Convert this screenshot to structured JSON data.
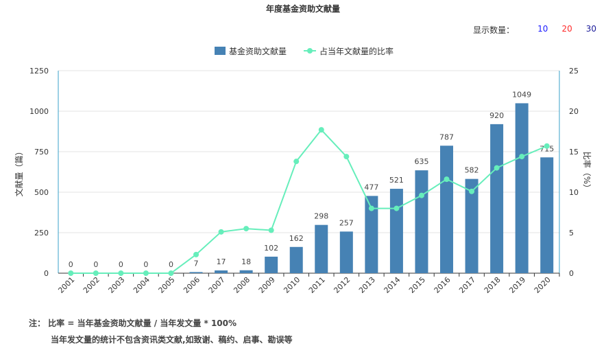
{
  "page": {
    "title": "年度基金资助文献量",
    "count_selector": {
      "label": "显示数量：",
      "options": [
        {
          "label": "10",
          "color": "#1a1aff"
        },
        {
          "label": "20",
          "color": "#ff2a2a"
        },
        {
          "label": "30",
          "color": "#1a1a99"
        }
      ]
    },
    "notes": {
      "line1": "注： 比率 = 当年基金资助文献量 / 当年发文量 * 100%",
      "line2": "当年发文量的统计不包含资讯类文献,如致谢、稿约、启事、勘误等"
    }
  },
  "chart_data": {
    "type": "bar",
    "categories": [
      "2001",
      "2002",
      "2003",
      "2004",
      "2005",
      "2006",
      "2007",
      "2008",
      "2009",
      "2010",
      "2011",
      "2012",
      "2013",
      "2014",
      "2015",
      "2016",
      "2017",
      "2018",
      "2019",
      "2020"
    ],
    "series": [
      {
        "name": "基金资助文献量",
        "type": "bar",
        "axis": "left",
        "color": "#4682b4",
        "values": [
          0,
          0,
          0,
          0,
          0,
          7,
          17,
          18,
          102,
          162,
          298,
          257,
          477,
          521,
          635,
          787,
          582,
          920,
          1049,
          715
        ]
      },
      {
        "name": "占当年文献量的比率",
        "type": "line",
        "axis": "right",
        "color": "#66eebb",
        "values": [
          0,
          0,
          0,
          0,
          0,
          2.3,
          5.1,
          5.5,
          5.3,
          13.8,
          17.7,
          14.4,
          8.0,
          8.0,
          9.6,
          11.6,
          10.1,
          13.0,
          14.4,
          15.7
        ]
      }
    ],
    "ylabel": "文献量（篇）",
    "y2label": "比率（%）",
    "ylim": [
      0,
      1250
    ],
    "yticks": [
      "0",
      "250",
      "500",
      "750",
      "1000",
      "1250"
    ],
    "y2lim": [
      0,
      25
    ],
    "y2ticks": [
      "0",
      "5",
      "10",
      "15",
      "20",
      "25"
    ],
    "grid": true,
    "legend_position": "top-center"
  }
}
